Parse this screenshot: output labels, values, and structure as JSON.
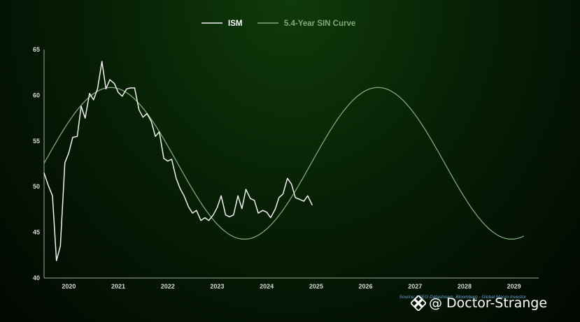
{
  "chart_data": {
    "type": "line",
    "legend": [
      {
        "label": "ISM",
        "color": "#f2f2f2"
      },
      {
        "label": "5.4-Year SIN Curve",
        "color": "#7fa97a"
      }
    ],
    "legend_placement": "top-center",
    "ylim": [
      40,
      65
    ],
    "yticks": [
      40,
      45,
      50,
      55,
      60,
      65
    ],
    "xlim": [
      2019.5,
      2029.5
    ],
    "xticks": [
      "2020",
      "2021",
      "2022",
      "2023",
      "2024",
      "2025",
      "2026",
      "2027",
      "2028",
      "2029"
    ],
    "grid": false,
    "series": [
      {
        "name": "ISM",
        "color": "#f2f2f2",
        "x": [
          2019.5,
          2019.58,
          2019.67,
          2019.75,
          2019.83,
          2019.92,
          2020.0,
          2020.08,
          2020.17,
          2020.25,
          2020.33,
          2020.42,
          2020.5,
          2020.58,
          2020.67,
          2020.75,
          2020.83,
          2020.92,
          2021.0,
          2021.08,
          2021.17,
          2021.25,
          2021.33,
          2021.42,
          2021.5,
          2021.58,
          2021.67,
          2021.75,
          2021.83,
          2021.92,
          2022.0,
          2022.08,
          2022.17,
          2022.25,
          2022.33,
          2022.42,
          2022.5,
          2022.58,
          2022.67,
          2022.75,
          2022.83,
          2022.92,
          2023.0,
          2023.08,
          2023.17,
          2023.25,
          2023.33,
          2023.42,
          2023.5,
          2023.58,
          2023.67,
          2023.75,
          2023.83,
          2023.92,
          2024.0,
          2024.08,
          2024.17,
          2024.25,
          2024.33,
          2024.42,
          2024.5,
          2024.58,
          2024.67,
          2024.75,
          2024.83,
          2024.92,
          2025.0,
          2025.08
        ],
        "values": [
          51.5,
          50.2,
          49.0,
          41.9,
          43.5,
          52.6,
          53.7,
          55.4,
          55.5,
          58.8,
          57.5,
          60.2,
          59.5,
          60.7,
          63.7,
          60.7,
          61.7,
          61.3,
          60.3,
          59.9,
          60.7,
          60.8,
          60.8,
          58.4,
          57.6,
          58.0,
          57.1,
          55.5,
          56.0,
          53.1,
          52.8,
          53.0,
          50.9,
          49.8,
          49.0,
          47.8,
          47.1,
          47.4,
          46.3,
          46.6,
          46.3,
          46.9,
          47.7,
          49.0,
          46.9,
          46.7,
          46.9,
          49.0,
          47.6,
          49.7,
          48.7,
          48.5,
          47.1,
          47.4,
          47.2,
          46.6,
          47.5,
          48.8,
          49.2,
          50.9,
          50.3,
          48.8,
          48.6,
          48.4,
          49.0,
          48.0,
          null,
          null
        ]
      },
      {
        "name": "5.4-Year SIN Curve",
        "color": "#7fa97a",
        "curve": {
          "amplitude": 8.3,
          "mean": 52.55,
          "period_years": 5.4,
          "peak_year": 2020.85
        },
        "x_start": 2019.5,
        "x_end": 2029.2
      }
    ],
    "source": "Source: LSEG Datastream, Bloomberg - Global Macro Investor"
  },
  "watermark": {
    "text": "@ Doctor-Strange"
  }
}
